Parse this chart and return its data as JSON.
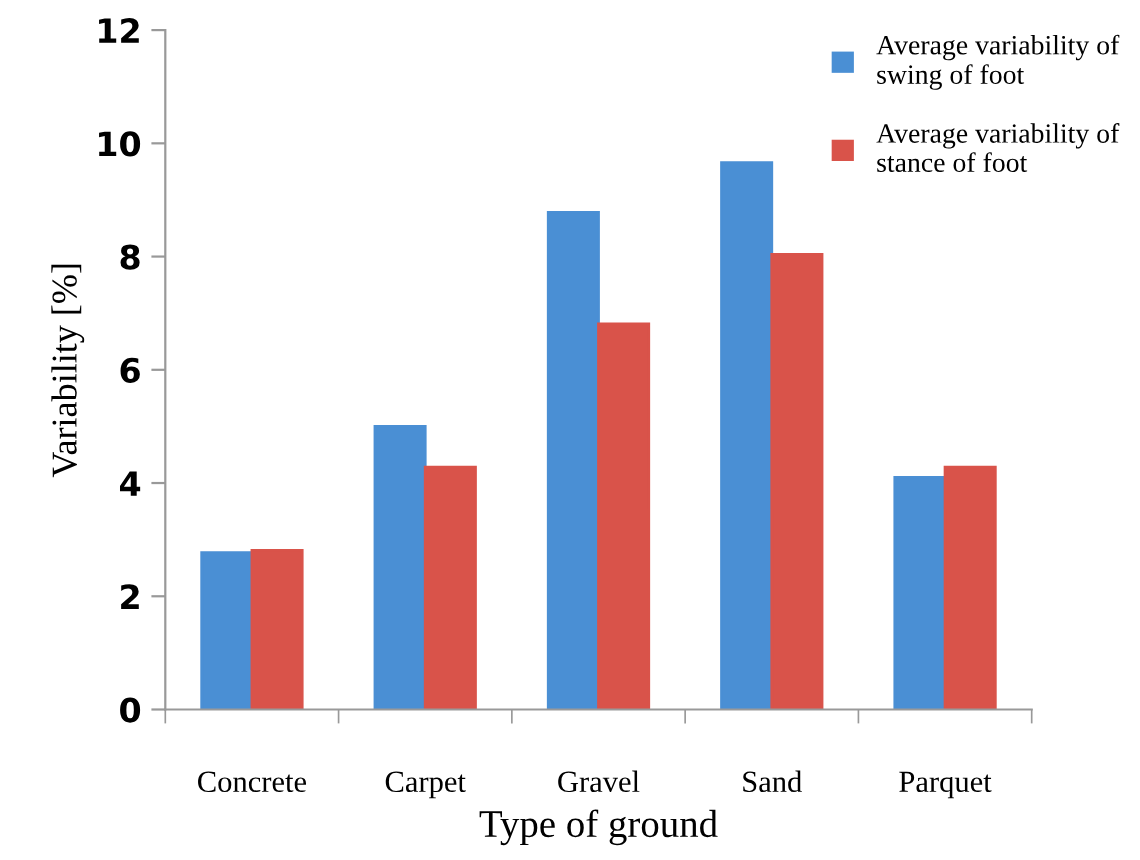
{
  "chart_data": {
    "type": "bar",
    "xlabel": "Type of ground",
    "ylabel": "Variability [%]",
    "categories": [
      "Concrete",
      "Carpet",
      "Gravel",
      "Sand",
      "Parquet"
    ],
    "series": [
      {
        "name": "Average variability of swing of foot",
        "color": "#4a8fd4",
        "values": [
          2.77,
          5.0,
          8.78,
          9.66,
          4.1
        ]
      },
      {
        "name": "Average variability of stance of foot",
        "color": "#d9534a",
        "values": [
          2.81,
          4.28,
          6.81,
          8.04,
          4.28
        ]
      }
    ],
    "ylim": [
      0,
      12
    ],
    "yticks": [
      0,
      2,
      4,
      6,
      8,
      10,
      12
    ],
    "grid": false,
    "legend": "top right"
  }
}
